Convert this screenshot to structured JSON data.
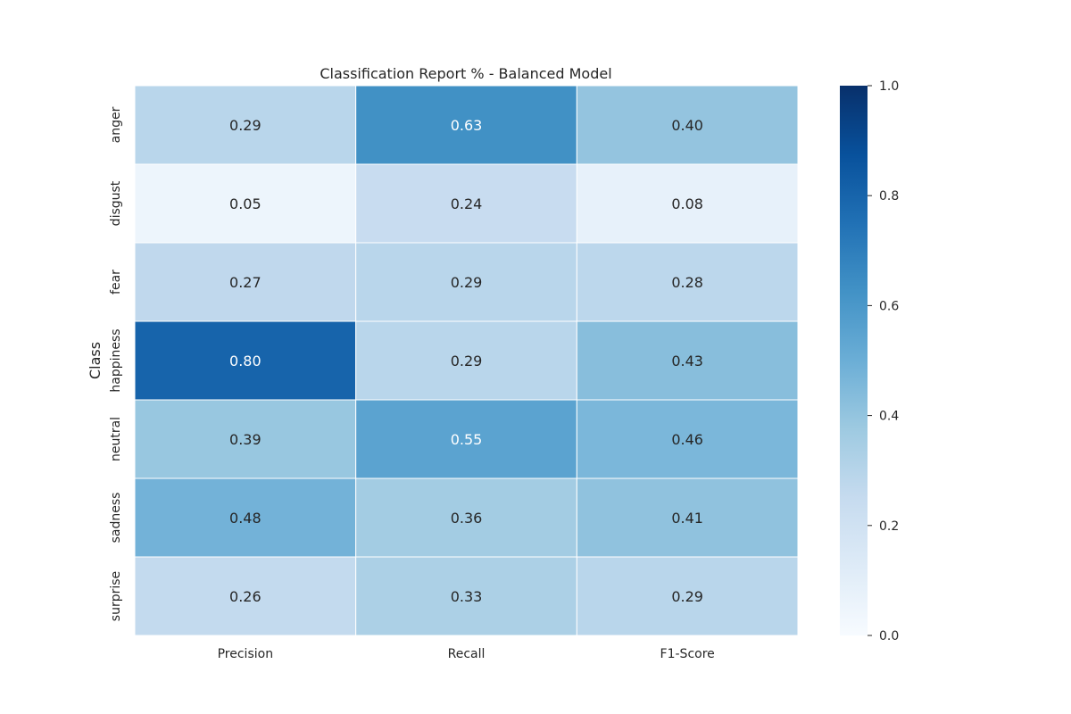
{
  "chart_data": {
    "type": "heatmap",
    "title": "Classification Report % - Balanced Model",
    "xlabel": "",
    "ylabel": "Class",
    "x_categories": [
      "Precision",
      "Recall",
      "F1-Score"
    ],
    "y_categories": [
      "anger",
      "disgust",
      "fear",
      "happiness",
      "neutral",
      "sadness",
      "surprise"
    ],
    "values": [
      [
        0.29,
        0.63,
        0.4
      ],
      [
        0.05,
        0.24,
        0.08
      ],
      [
        0.27,
        0.29,
        0.28
      ],
      [
        0.8,
        0.29,
        0.43
      ],
      [
        0.39,
        0.55,
        0.46
      ],
      [
        0.48,
        0.36,
        0.41
      ],
      [
        0.26,
        0.33,
        0.29
      ]
    ],
    "value_format": "0.00",
    "colormap": "Blues",
    "color_range": [
      0.0,
      1.0
    ],
    "colorbar_ticks": [
      "0.0",
      "0.2",
      "0.4",
      "0.6",
      "0.8",
      "1.0"
    ],
    "grid": false,
    "legend": "colorbar-right"
  }
}
